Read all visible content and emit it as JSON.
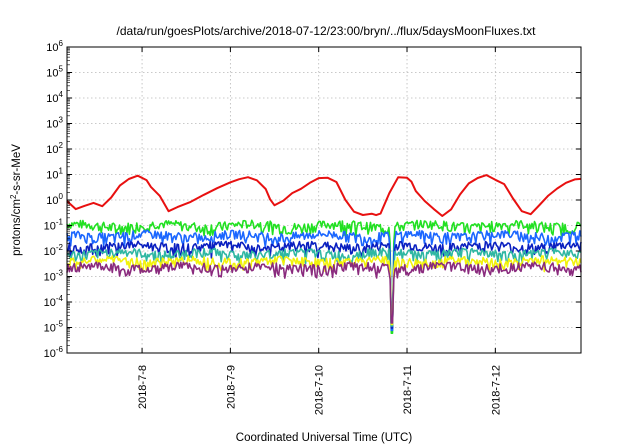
{
  "chart_data": {
    "type": "line",
    "title": "/data/run/goesPlots/archive/2018-07-12/23:00/bryn/../flux/5daysMoonFluxes.txt",
    "xlabel": "Coordinated Universal Time (UTC)",
    "ylabel_prefix": "protons/cm",
    "ylabel_sup": "2",
    "ylabel_suffix": "-s-sr-MeV",
    "y_scale": "log",
    "ylim": [
      1e-06,
      1000000.0
    ],
    "xlim": [
      7.15,
      12.97
    ],
    "grid": true,
    "y_ticks": [
      {
        "value": -6,
        "base": "10",
        "exp": "-6"
      },
      {
        "value": -5,
        "base": "10",
        "exp": "-5"
      },
      {
        "value": -4,
        "base": "10",
        "exp": "-4"
      },
      {
        "value": -3,
        "base": "10",
        "exp": "-3"
      },
      {
        "value": -2,
        "base": "10",
        "exp": "-2"
      },
      {
        "value": -1,
        "base": "10",
        "exp": "-1"
      },
      {
        "value": 0,
        "base": "10",
        "exp": "0"
      },
      {
        "value": 1,
        "base": "10",
        "exp": "1"
      },
      {
        "value": 2,
        "base": "10",
        "exp": "2"
      },
      {
        "value": 3,
        "base": "10",
        "exp": "3"
      },
      {
        "value": 4,
        "base": "10",
        "exp": "4"
      },
      {
        "value": 5,
        "base": "10",
        "exp": "5"
      },
      {
        "value": 6,
        "base": "10",
        "exp": "6"
      }
    ],
    "x_ticks": [
      {
        "value": 8,
        "label": "2018-7-8"
      },
      {
        "value": 9,
        "label": "2018-7-9"
      },
      {
        "value": 10,
        "label": "2018-7-10"
      },
      {
        "value": 11,
        "label": "2018-7-11"
      },
      {
        "value": 12,
        "label": "2018-7-12"
      }
    ],
    "series": [
      {
        "color": "#e81010",
        "x": [
          7.15,
          7.25,
          7.35,
          7.45,
          7.55,
          7.65,
          7.75,
          7.85,
          7.95,
          8.05,
          8.1,
          8.2,
          8.3,
          8.4,
          8.55,
          8.7,
          8.85,
          9.0,
          9.1,
          9.2,
          9.3,
          9.4,
          9.45,
          9.5,
          9.6,
          9.7,
          9.8,
          9.9,
          10.0,
          10.1,
          10.2,
          10.3,
          10.4,
          10.5,
          10.6,
          10.65,
          10.7,
          10.8,
          10.9,
          11.0,
          11.05,
          11.1,
          11.2,
          11.3,
          11.4,
          11.5,
          11.6,
          11.7,
          11.8,
          11.9,
          12.0,
          12.1,
          12.2,
          12.3,
          12.4,
          12.5,
          12.6,
          12.7,
          12.8,
          12.9,
          12.97
        ],
        "y": [
          0.9,
          0.5,
          0.55,
          0.7,
          0.6,
          1.4,
          3.5,
          6.5,
          9.0,
          6.0,
          3.5,
          1.5,
          0.35,
          0.5,
          0.9,
          1.6,
          3.0,
          5.0,
          6.5,
          7.5,
          6.0,
          3.0,
          1.2,
          0.6,
          0.9,
          1.7,
          2.8,
          4.5,
          7.0,
          8.0,
          5.0,
          1.0,
          0.35,
          0.25,
          0.3,
          0.25,
          0.3,
          2.0,
          7.0,
          8.0,
          5.0,
          2.5,
          0.9,
          0.5,
          0.25,
          0.4,
          1.5,
          4.0,
          7.5,
          9.5,
          6.0,
          4.0,
          1.2,
          0.35,
          0.3,
          0.6,
          1.5,
          3.0,
          5.0,
          6.5,
          7.0
        ]
      },
      {
        "color": "#22e022",
        "base": 0.1,
        "min_dip": 0.02
      },
      {
        "color": "#1b66ff",
        "base": 0.04,
        "min_dip": 0.008
      },
      {
        "color": "#0a1fc0",
        "base": 0.015,
        "min_dip": 0.003
      },
      {
        "color": "#2fb7a2",
        "base": 0.008,
        "min_dip": 0.002
      },
      {
        "color": "#f2f20c",
        "base": 0.004,
        "min_dip": 0.0015
      },
      {
        "color": "#8a2b7e",
        "base": 0.0023,
        "min_dip": 0.0008
      }
    ]
  }
}
